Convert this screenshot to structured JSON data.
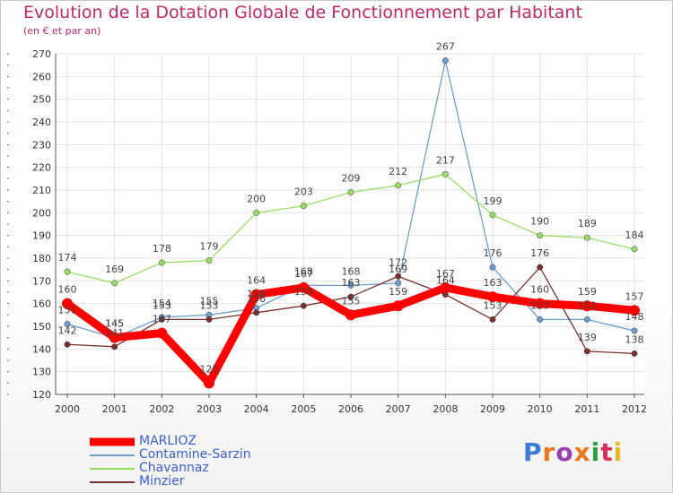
{
  "chart_data": {
    "type": "line",
    "title": "Evolution de la Dotation Globale de Fonctionnement par Habitant",
    "subtitle": "(en € et par an)",
    "x": [
      "2000",
      "2001",
      "2002",
      "2003",
      "2004",
      "2005",
      "2006",
      "2007",
      "2008",
      "2009",
      "2010",
      "2011",
      "2012"
    ],
    "ylim": [
      120,
      270
    ],
    "yticks": [
      120,
      130,
      140,
      150,
      160,
      170,
      180,
      190,
      200,
      210,
      220,
      230,
      240,
      250,
      260,
      270
    ],
    "grid": true,
    "series": [
      {
        "name": "MARLIOZ",
        "color": "#ff0000",
        "values": [
          160,
          145,
          147,
          125,
          164,
          167,
          155,
          159,
          167,
          163,
          160,
          159,
          157
        ]
      },
      {
        "name": "Contamine-Sarzin",
        "color": "#6c9fd0",
        "values": [
          151,
          145,
          154,
          155,
          158,
          168,
          168,
          169,
          267,
          176,
          153,
          153,
          148
        ]
      },
      {
        "name": "Chavannaz",
        "color": "#99dd66",
        "values": [
          174,
          169,
          178,
          179,
          200,
          203,
          209,
          212,
          217,
          199,
          190,
          189,
          184
        ]
      },
      {
        "name": "Minzier",
        "color": "#7a3030",
        "values": [
          142,
          141,
          153,
          153,
          156,
          159,
          163,
          172,
          164,
          153,
          176,
          139,
          138
        ]
      }
    ]
  },
  "legend": {
    "position": "bottom-left"
  },
  "branding": {
    "logo_text": "Proxiti"
  }
}
